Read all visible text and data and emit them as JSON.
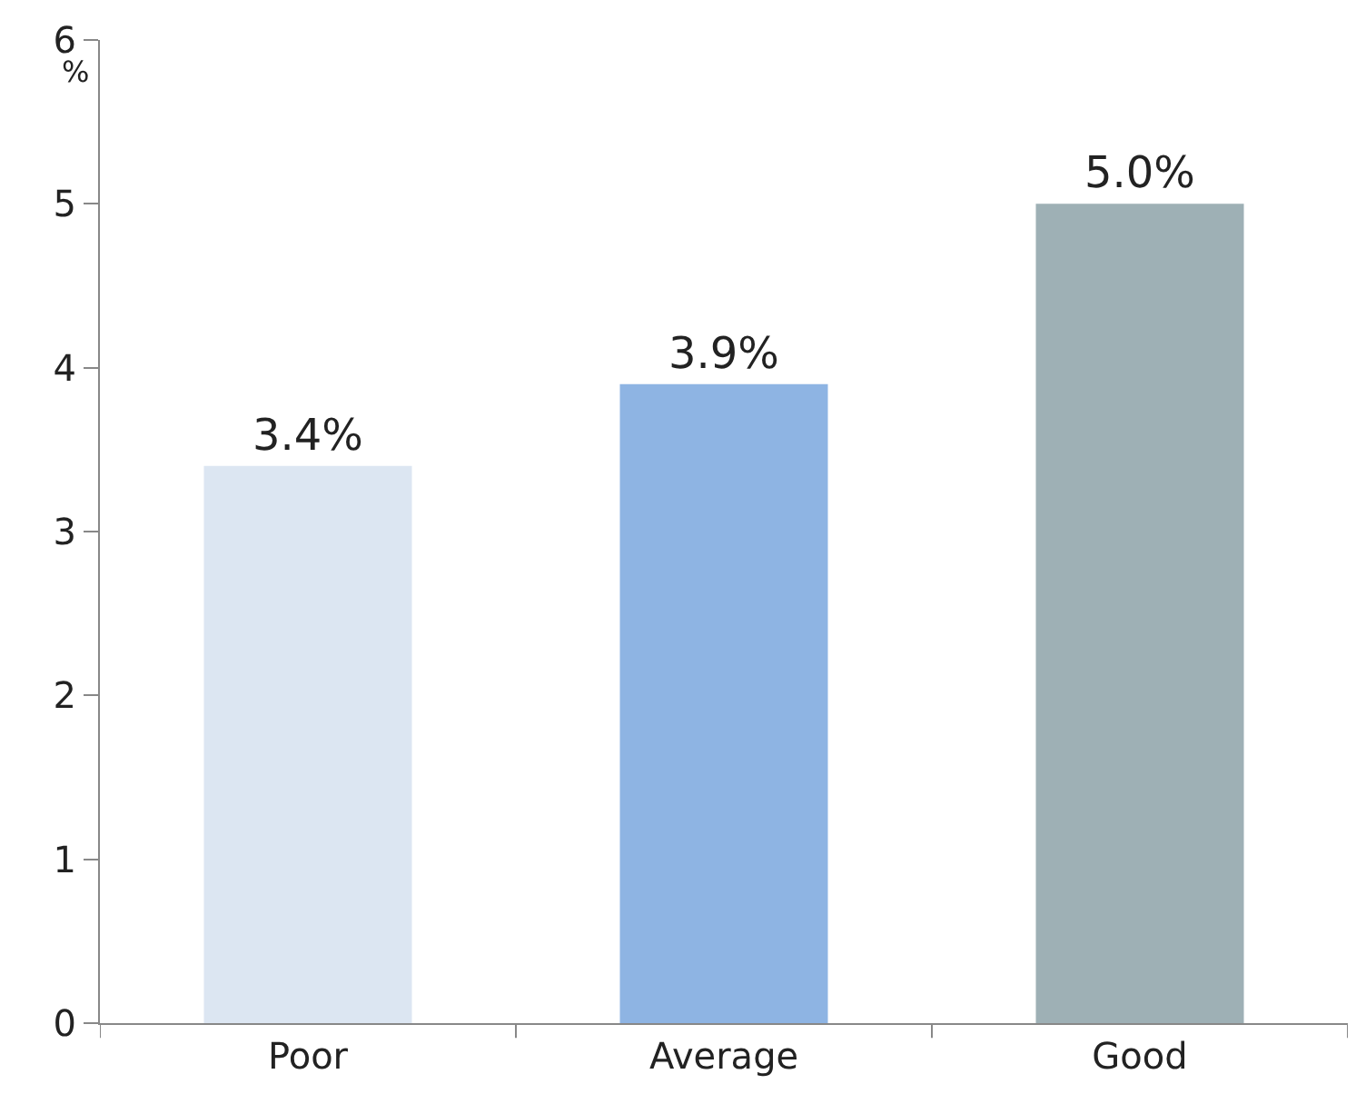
{
  "chart_data": {
    "type": "bar",
    "ylabel": "%",
    "categories": [
      "Poor",
      "Average",
      "Good"
    ],
    "values": [
      3.4,
      3.9,
      5.0
    ],
    "colors": [
      "#dce6f2",
      "#8eb4e3",
      "#9eb0b5"
    ],
    "value_labels": [
      "3.4%",
      "3.9%",
      "5.0%"
    ],
    "ylim": [
      0,
      6
    ],
    "yticks": [
      0,
      1,
      2,
      3,
      4,
      5,
      6
    ]
  }
}
